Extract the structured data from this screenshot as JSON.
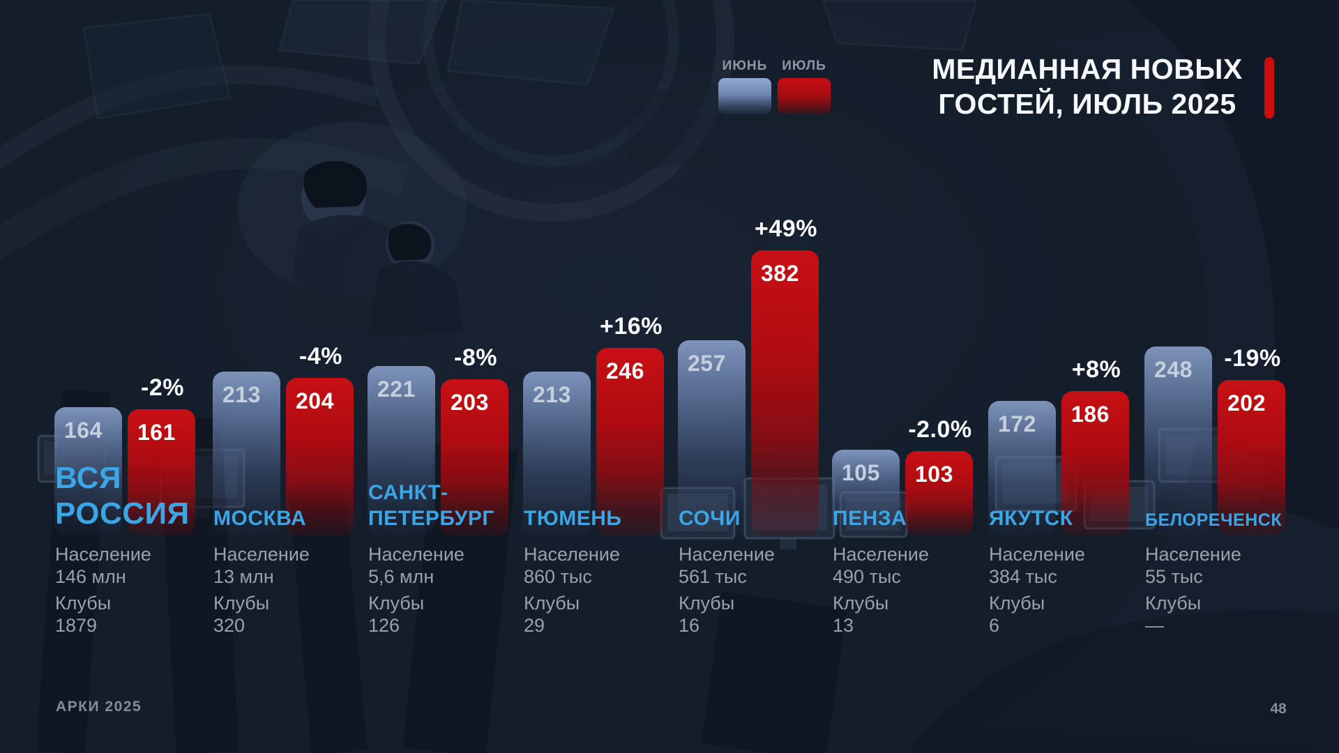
{
  "title": {
    "line1": "МЕДИАННАЯ НОВЫХ",
    "line2": "ГОСТЕЙ, ИЮЛЬ 2025"
  },
  "legend": {
    "june_label": "ИЮНЬ",
    "july_label": "ИЮЛЬ"
  },
  "footer": {
    "brand": "АРКИ 2025",
    "page_number": "48"
  },
  "stats_labels": {
    "population": "Население",
    "clubs": "Клубы"
  },
  "colors": {
    "background": "#141d2a",
    "accent_red": "#cc0d0d",
    "june_bar": "#7e9ac4",
    "july_bar": "#bf0e13",
    "city_label": "#3ba5e6",
    "stats_text": "#99a1ad",
    "title_text": "#f5f7fa",
    "muted_text": "#8e96a3"
  },
  "chart_data": {
    "type": "bar",
    "title": "МЕДИАННАЯ НОВЫХ ГОСТЕЙ, ИЮЛЬ 2025",
    "legend_position": "top",
    "value_labels_shown": true,
    "categories": [
      "ВСЯ РОССИЯ",
      "МОСКВА",
      "САНКТ-ПЕТЕРБУРГ",
      "ТЮМЕНЬ",
      "СОЧИ",
      "ПЕНЗА",
      "ЯКУТСК",
      "БЕЛОРЕЧЕНСК"
    ],
    "series": [
      {
        "name": "ИЮНЬ",
        "color": "#7e9ac4",
        "values": [
          164,
          213,
          221,
          213,
          257,
          105,
          172,
          248
        ]
      },
      {
        "name": "ИЮЛЬ",
        "color": "#bf0e13",
        "values": [
          161,
          204,
          203,
          246,
          382,
          103,
          186,
          202
        ]
      }
    ],
    "change_labels": [
      "-2%",
      "-4%",
      "-8%",
      "+16%",
      "+49%",
      "-2.0%",
      "+8%",
      "-19%"
    ],
    "groups": [
      {
        "city_lines": [
          "ВСЯ",
          "РОССИЯ"
        ],
        "name_size": "lg",
        "population": "146 млн",
        "clubs": "1879"
      },
      {
        "city_lines": [
          "МОСКВА"
        ],
        "name_size": "md",
        "population": "13 млн",
        "clubs": "320"
      },
      {
        "city_lines": [
          "САНКТ-",
          "ПЕТЕРБУРГ"
        ],
        "name_size": "md",
        "population": "5,6 млн",
        "clubs": "126"
      },
      {
        "city_lines": [
          "ТЮМЕНЬ"
        ],
        "name_size": "md",
        "population": "860 тыс",
        "clubs": "29"
      },
      {
        "city_lines": [
          "СОЧИ"
        ],
        "name_size": "md",
        "population": "561 тыс",
        "clubs": "16"
      },
      {
        "city_lines": [
          "ПЕНЗА"
        ],
        "name_size": "md",
        "population": "490 тыс",
        "clubs": "13"
      },
      {
        "city_lines": [
          "ЯКУТСК"
        ],
        "name_size": "md",
        "population": "384 тыс",
        "clubs": "6"
      },
      {
        "city_lines": [
          "БЕЛОРЕЧЕНСК"
        ],
        "name_size": "sm",
        "population": "55 тыс",
        "clubs": "—"
      }
    ]
  }
}
